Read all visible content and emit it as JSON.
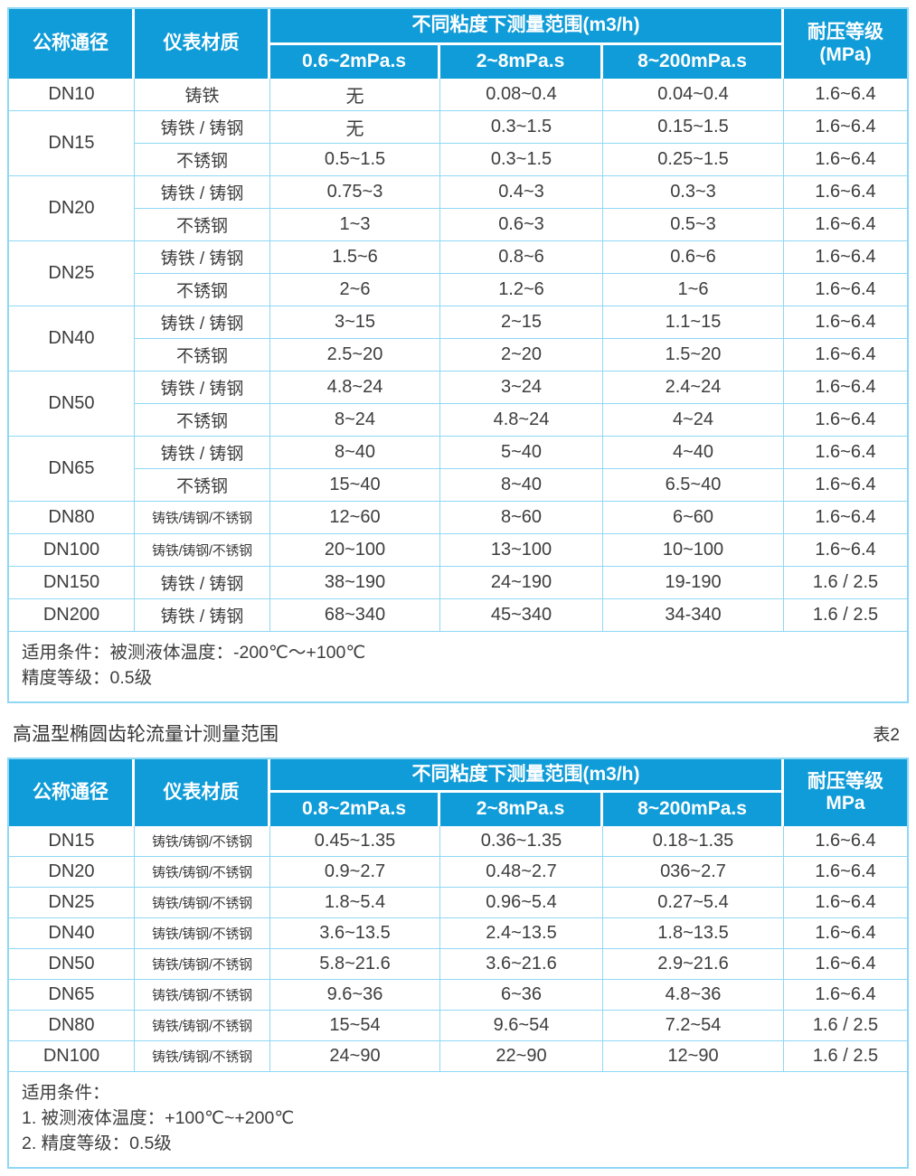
{
  "colors": {
    "header_bg": "#0f9cd8",
    "grid_border": "#8fd8f4",
    "header_text": "#ffffff",
    "body_text": "#3d3d3d"
  },
  "table1": {
    "header": {
      "col_diameter": "公称通径",
      "col_material": "仪表材质",
      "range_group": "不同粘度下测量范围(m3/h)",
      "sub_cols": [
        "0.6~2mPa.s",
        "2~8mPa.s",
        "8~200mPa.s"
      ],
      "pressure_line1": "耐压等级",
      "pressure_line2": "(MPa)"
    },
    "groups": [
      {
        "diameter": "DN10",
        "rows": [
          {
            "material": "铸铁",
            "values": [
              "无",
              "0.08~0.4",
              "0.04~0.4"
            ],
            "pressure": "1.6~6.4"
          }
        ]
      },
      {
        "diameter": "DN15",
        "rows": [
          {
            "material": "铸铁 / 铸钢",
            "values": [
              "无",
              "0.3~1.5",
              "0.15~1.5"
            ],
            "pressure": "1.6~6.4"
          },
          {
            "material": "不锈钢",
            "values": [
              "0.5~1.5",
              "0.3~1.5",
              "0.25~1.5"
            ],
            "pressure": "1.6~6.4"
          }
        ]
      },
      {
        "diameter": "DN20",
        "rows": [
          {
            "material": "铸铁 / 铸钢",
            "values": [
              "0.75~3",
              "0.4~3",
              "0.3~3"
            ],
            "pressure": "1.6~6.4"
          },
          {
            "material": "不锈钢",
            "values": [
              "1~3",
              "0.6~3",
              "0.5~3"
            ],
            "pressure": "1.6~6.4"
          }
        ]
      },
      {
        "diameter": "DN25",
        "rows": [
          {
            "material": "铸铁 / 铸钢",
            "values": [
              "1.5~6",
              "0.8~6",
              "0.6~6"
            ],
            "pressure": "1.6~6.4"
          },
          {
            "material": "不锈钢",
            "values": [
              "2~6",
              "1.2~6",
              "1~6"
            ],
            "pressure": "1.6~6.4"
          }
        ]
      },
      {
        "diameter": "DN40",
        "rows": [
          {
            "material": "铸铁 / 铸钢",
            "values": [
              "3~15",
              "2~15",
              "1.1~15"
            ],
            "pressure": "1.6~6.4"
          },
          {
            "material": "不锈钢",
            "values": [
              "2.5~20",
              "2~20",
              "1.5~20"
            ],
            "pressure": "1.6~6.4"
          }
        ]
      },
      {
        "diameter": "DN50",
        "rows": [
          {
            "material": "铸铁 / 铸钢",
            "values": [
              "4.8~24",
              "3~24",
              "2.4~24"
            ],
            "pressure": "1.6~6.4"
          },
          {
            "material": "不锈钢",
            "values": [
              "8~24",
              "4.8~24",
              "4~24"
            ],
            "pressure": "1.6~6.4"
          }
        ]
      },
      {
        "diameter": "DN65",
        "rows": [
          {
            "material": "铸铁 / 铸钢",
            "values": [
              "8~40",
              "5~40",
              "4~40"
            ],
            "pressure": "1.6~6.4"
          },
          {
            "material": "不锈钢",
            "values": [
              "15~40",
              "8~40",
              "6.5~40"
            ],
            "pressure": "1.6~6.4"
          }
        ]
      },
      {
        "diameter": "DN80",
        "rows": [
          {
            "material": "铸铁/铸钢/不锈钢",
            "values": [
              "12~60",
              "8~60",
              "6~60"
            ],
            "pressure": "1.6~6.4"
          }
        ]
      },
      {
        "diameter": "DN100",
        "rows": [
          {
            "material": "铸铁/铸钢/不锈钢",
            "values": [
              "20~100",
              "13~100",
              "10~100"
            ],
            "pressure": "1.6~6.4"
          }
        ]
      },
      {
        "diameter": "DN150",
        "rows": [
          {
            "material": "铸铁 / 铸钢",
            "values": [
              "38~190",
              "24~190",
              "19-190"
            ],
            "pressure": "1.6 / 2.5"
          }
        ]
      },
      {
        "diameter": "DN200",
        "rows": [
          {
            "material": "铸铁 / 铸钢",
            "values": [
              "68~340",
              "45~340",
              "34-340"
            ],
            "pressure": "1.6 / 2.5"
          }
        ]
      }
    ],
    "footer_lines": [
      "适用条件：被测液体温度：-200℃～+100℃",
      "精度等级：0.5级"
    ]
  },
  "section2": {
    "title": "高温型椭圆齿轮流量计测量范围",
    "table_label": "表2"
  },
  "table2": {
    "header": {
      "col_diameter": "公称通径",
      "col_material": "仪表材质",
      "range_group": "不同粘度下测量范围(m3/h)",
      "sub_cols": [
        "0.8~2mPa.s",
        "2~8mPa.s",
        "8~200mPa.s"
      ],
      "pressure_line1": "耐压等级",
      "pressure_line2": "MPa"
    },
    "groups": [
      {
        "diameter": "DN15",
        "rows": [
          {
            "material": "铸铁/铸钢/不锈钢",
            "values": [
              "0.45~1.35",
              "0.36~1.35",
              "0.18~1.35"
            ],
            "pressure": "1.6~6.4"
          }
        ]
      },
      {
        "diameter": "DN20",
        "rows": [
          {
            "material": "铸铁/铸钢/不锈钢",
            "values": [
              "0.9~2.7",
              "0.48~2.7",
              "036~2.7"
            ],
            "pressure": "1.6~6.4"
          }
        ]
      },
      {
        "diameter": "DN25",
        "rows": [
          {
            "material": "铸铁/铸钢/不锈钢",
            "values": [
              "1.8~5.4",
              "0.96~5.4",
              "0.27~5.4"
            ],
            "pressure": "1.6~6.4"
          }
        ]
      },
      {
        "diameter": "DN40",
        "rows": [
          {
            "material": "铸铁/铸钢/不锈钢",
            "values": [
              "3.6~13.5",
              "2.4~13.5",
              "1.8~13.5"
            ],
            "pressure": "1.6~6.4"
          }
        ]
      },
      {
        "diameter": "DN50",
        "rows": [
          {
            "material": "铸铁/铸钢/不锈钢",
            "values": [
              "5.8~21.6",
              "3.6~21.6",
              "2.9~21.6"
            ],
            "pressure": "1.6~6.4"
          }
        ]
      },
      {
        "diameter": "DN65",
        "rows": [
          {
            "material": "铸铁/铸钢/不锈钢",
            "values": [
              "9.6~36",
              "6~36",
              "4.8~36"
            ],
            "pressure": "1.6~6.4"
          }
        ]
      },
      {
        "diameter": "DN80",
        "rows": [
          {
            "material": "铸铁/铸钢/不锈钢",
            "values": [
              "15~54",
              "9.6~54",
              "7.2~54"
            ],
            "pressure": "1.6 / 2.5"
          }
        ]
      },
      {
        "diameter": "DN100",
        "rows": [
          {
            "material": "铸铁/铸钢/不锈钢",
            "values": [
              "24~90",
              "22~90",
              "12~90"
            ],
            "pressure": "1.6 / 2.5"
          }
        ]
      }
    ],
    "footer_lines": [
      "适用条件：",
      "1.  被测液体温度：+100℃~+200℃",
      "2.  精度等级：0.5级"
    ]
  }
}
